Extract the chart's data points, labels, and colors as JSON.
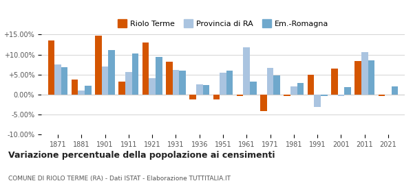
{
  "years": [
    1871,
    1881,
    1901,
    1911,
    1921,
    1931,
    1936,
    1951,
    1961,
    1971,
    1981,
    1991,
    2001,
    2011,
    2021
  ],
  "riolo": [
    13.5,
    3.8,
    14.7,
    3.2,
    13.0,
    8.2,
    -1.3,
    -1.2,
    -0.3,
    -4.2,
    -0.3,
    4.9,
    6.4,
    8.3,
    -0.3
  ],
  "provincia": [
    7.5,
    1.0,
    7.0,
    5.6,
    4.0,
    6.2,
    2.5,
    5.5,
    11.8,
    6.6,
    2.0,
    -3.2,
    -0.3,
    10.6,
    0.0
  ],
  "emilia": [
    6.8,
    2.2,
    11.1,
    10.3,
    9.4,
    6.0,
    2.3,
    6.0,
    3.2,
    4.7,
    2.8,
    -0.4,
    1.8,
    8.6,
    2.0
  ],
  "color_riolo": "#d45500",
  "color_provincia": "#aac4e0",
  "color_emilia": "#6fa8cc",
  "title": "Variazione percentuale della popolazione ai censimenti",
  "subtitle": "COMUNE DI RIOLO TERME (RA) - Dati ISTAT - Elaborazione TUTTITALIA.IT",
  "ylim": [
    -10.0,
    15.0
  ],
  "yticks": [
    -10.0,
    -5.0,
    0.0,
    5.0,
    10.0,
    15.0
  ],
  "legend_labels": [
    "Riolo Terme",
    "Provincia di RA",
    "Em.-Romagna"
  ]
}
